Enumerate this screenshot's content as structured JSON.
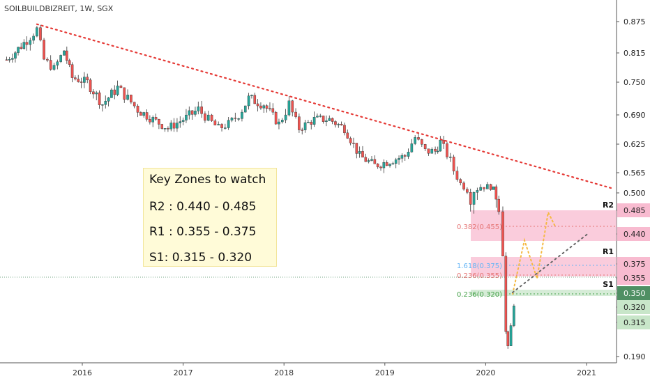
{
  "header": {
    "title": "SOILBUILDBIZREIT, 1W, SGX"
  },
  "key_box": {
    "heading": "Key Zones to watch",
    "r2": "R2 : 0.440 - 0.485",
    "r1": "R1 : 0.355 - 0.375",
    "s1": "S1: 0.315 - 0.320"
  },
  "colors": {
    "up": "#26a69a",
    "down": "#ef5350",
    "trendline": "#e53935",
    "resistance_zone": "#f8bbd0",
    "support_zone": "#c8e6c9",
    "current_price": "#4f8f63"
  },
  "chart_data": {
    "type": "candlestick",
    "title": "SOILBUILDBIZREIT, 1W, SGX",
    "x_ticks": [
      "2016",
      "2017",
      "2018",
      "2019",
      "2020",
      "2021"
    ],
    "y_ticks": [
      0.875,
      0.815,
      0.75,
      0.69,
      0.625,
      0.565,
      0.5,
      0.44,
      0.375,
      0.35,
      0.32,
      0.315,
      0.19
    ],
    "ylim": [
      0.18,
      0.905
    ],
    "ohlc_path": [
      [
        2015.25,
        0.8
      ],
      [
        2015.45,
        0.84
      ],
      [
        2015.55,
        0.86
      ],
      [
        2015.62,
        0.8
      ],
      [
        2015.72,
        0.78
      ],
      [
        2015.82,
        0.82
      ],
      [
        2015.9,
        0.76
      ],
      [
        2016.05,
        0.75
      ],
      [
        2016.2,
        0.71
      ],
      [
        2016.35,
        0.74
      ],
      [
        2016.45,
        0.72
      ],
      [
        2016.55,
        0.7
      ],
      [
        2016.7,
        0.68
      ],
      [
        2016.85,
        0.66
      ],
      [
        2017.0,
        0.68
      ],
      [
        2017.15,
        0.7
      ],
      [
        2017.25,
        0.68
      ],
      [
        2017.35,
        0.66
      ],
      [
        2017.45,
        0.67
      ],
      [
        2017.55,
        0.69
      ],
      [
        2017.65,
        0.72
      ],
      [
        2017.8,
        0.71
      ],
      [
        2017.95,
        0.67
      ],
      [
        2018.05,
        0.71
      ],
      [
        2018.15,
        0.66
      ],
      [
        2018.3,
        0.68
      ],
      [
        2018.45,
        0.68
      ],
      [
        2018.6,
        0.66
      ],
      [
        2018.75,
        0.6
      ],
      [
        2018.9,
        0.58
      ],
      [
        2019.05,
        0.59
      ],
      [
        2019.2,
        0.6
      ],
      [
        2019.3,
        0.64
      ],
      [
        2019.4,
        0.61
      ],
      [
        2019.5,
        0.61
      ],
      [
        2019.55,
        0.63
      ],
      [
        2019.65,
        0.59
      ],
      [
        2019.75,
        0.53
      ],
      [
        2019.85,
        0.5
      ],
      [
        2019.95,
        0.52
      ],
      [
        2020.05,
        0.52
      ],
      [
        2020.13,
        0.49
      ],
      [
        2020.17,
        0.4
      ],
      [
        2020.2,
        0.28
      ],
      [
        2020.22,
        0.22
      ],
      [
        2020.25,
        0.3
      ],
      [
        2020.28,
        0.33
      ],
      [
        2020.32,
        0.33
      ]
    ],
    "trendline": {
      "from": [
        2015.55,
        0.87
      ],
      "to": [
        2021.25,
        0.515
      ]
    },
    "zones": [
      {
        "label": "R2",
        "from": 0.44,
        "to": 0.485,
        "color": "#f8bbd0"
      },
      {
        "label": "R1",
        "from": 0.355,
        "to": 0.375,
        "color": "#f8bbd0"
      },
      {
        "label": "S1",
        "from": 0.315,
        "to": 0.32,
        "color": "#c8e6c9"
      }
    ],
    "fib_levels": [
      {
        "label": "0.382(0.455)",
        "value": 0.455,
        "color": "#e57373"
      },
      {
        "label": "1.618(0.375)",
        "value": 0.375,
        "color": "#64b5f6"
      },
      {
        "label": "0.236(0.355)",
        "value": 0.355,
        "color": "#e57373"
      },
      {
        "label": "0.236(0.320)",
        "value": 0.32,
        "color": "#43a047"
      }
    ],
    "current_price": 0.35
  }
}
